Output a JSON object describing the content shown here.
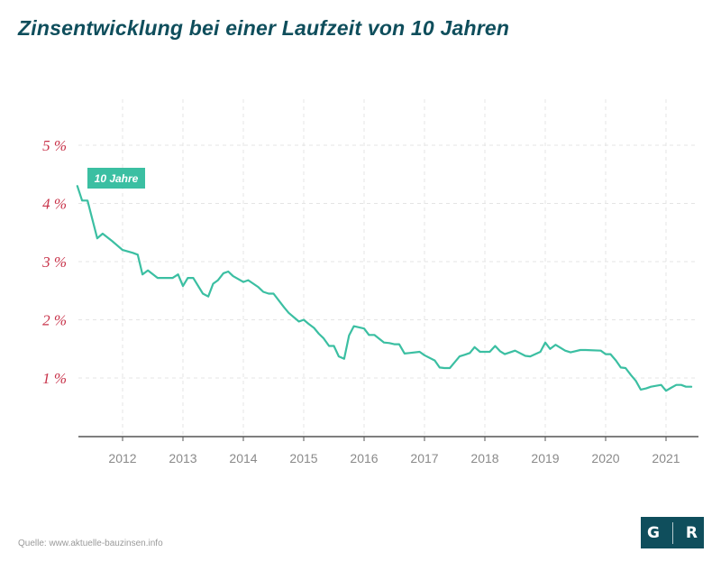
{
  "title": "Zinsentwicklung bei einer Laufzeit von 10 Jahren",
  "source": "Quelle: www.aktuelle-bauzinsen.info",
  "logo": {
    "left": "G",
    "right": "R"
  },
  "colors": {
    "line": "#3bbfa2",
    "title": "#0f4e5c",
    "ytick": "#c8334a",
    "grid": "#e4e4e4",
    "legend_bg": "#3bbfa2"
  },
  "chart_data": {
    "type": "line",
    "title": "Zinsentwicklung bei einer Laufzeit von 10 Jahren",
    "xlabel": "",
    "ylabel": "",
    "ylim": [
      0,
      5.5
    ],
    "xlim": [
      2011.25,
      2021.5
    ],
    "yticks": [
      1,
      2,
      3,
      4,
      5
    ],
    "ytick_labels": [
      "1 %",
      "2 %",
      "3 %",
      "4 %",
      "5 %"
    ],
    "xticks": [
      "2012",
      "2013",
      "2014",
      "2015",
      "2016",
      "2017",
      "2018",
      "2019",
      "2020",
      "2021"
    ],
    "grid": true,
    "legend": "top-left",
    "series": [
      {
        "name": "10 Jahre",
        "x": [
          2011.25,
          2011.33,
          2011.42,
          2011.58,
          2011.67,
          2011.83,
          2012.0,
          2012.17,
          2012.25,
          2012.33,
          2012.42,
          2012.58,
          2012.75,
          2012.83,
          2012.92,
          2013.0,
          2013.08,
          2013.17,
          2013.33,
          2013.42,
          2013.5,
          2013.58,
          2013.67,
          2013.75,
          2013.83,
          2014.0,
          2014.08,
          2014.25,
          2014.33,
          2014.42,
          2014.5,
          2014.67,
          2014.75,
          2014.92,
          2015.0,
          2015.08,
          2015.17,
          2015.25,
          2015.33,
          2015.42,
          2015.5,
          2015.58,
          2015.67,
          2015.75,
          2015.83,
          2016.0,
          2016.08,
          2016.17,
          2016.33,
          2016.42,
          2016.5,
          2016.58,
          2016.67,
          2016.75,
          2016.92,
          2017.0,
          2017.17,
          2017.25,
          2017.33,
          2017.42,
          2017.5,
          2017.58,
          2017.67,
          2017.75,
          2017.83,
          2017.92,
          2018.0,
          2018.08,
          2018.17,
          2018.25,
          2018.33,
          2018.5,
          2018.67,
          2018.75,
          2018.92,
          2019.0,
          2019.08,
          2019.17,
          2019.33,
          2019.42,
          2019.58,
          2019.67,
          2019.92,
          2020.0,
          2020.08,
          2020.17,
          2020.25,
          2020.33,
          2020.42,
          2020.5,
          2020.58,
          2020.67,
          2020.75,
          2020.92,
          2021.0,
          2021.08,
          2021.17,
          2021.25,
          2021.33,
          2021.42
        ],
        "values": [
          4.3,
          4.05,
          4.05,
          3.4,
          3.48,
          3.35,
          3.2,
          3.15,
          3.12,
          2.78,
          2.85,
          2.72,
          2.72,
          2.72,
          2.78,
          2.58,
          2.72,
          2.72,
          2.45,
          2.4,
          2.62,
          2.68,
          2.8,
          2.83,
          2.75,
          2.65,
          2.68,
          2.56,
          2.48,
          2.45,
          2.45,
          2.22,
          2.12,
          1.97,
          2.0,
          1.93,
          1.86,
          1.76,
          1.68,
          1.55,
          1.55,
          1.37,
          1.33,
          1.73,
          1.89,
          1.85,
          1.74,
          1.74,
          1.61,
          1.6,
          1.58,
          1.58,
          1.42,
          1.43,
          1.45,
          1.39,
          1.3,
          1.18,
          1.17,
          1.17,
          1.27,
          1.37,
          1.4,
          1.43,
          1.53,
          1.45,
          1.45,
          1.45,
          1.55,
          1.46,
          1.41,
          1.47,
          1.38,
          1.37,
          1.45,
          1.61,
          1.5,
          1.57,
          1.47,
          1.44,
          1.48,
          1.48,
          1.47,
          1.41,
          1.41,
          1.3,
          1.18,
          1.17,
          1.05,
          0.95,
          0.8,
          0.82,
          0.85,
          0.88,
          0.78,
          0.83,
          0.88,
          0.88,
          0.85,
          0.85
        ]
      }
    ]
  }
}
